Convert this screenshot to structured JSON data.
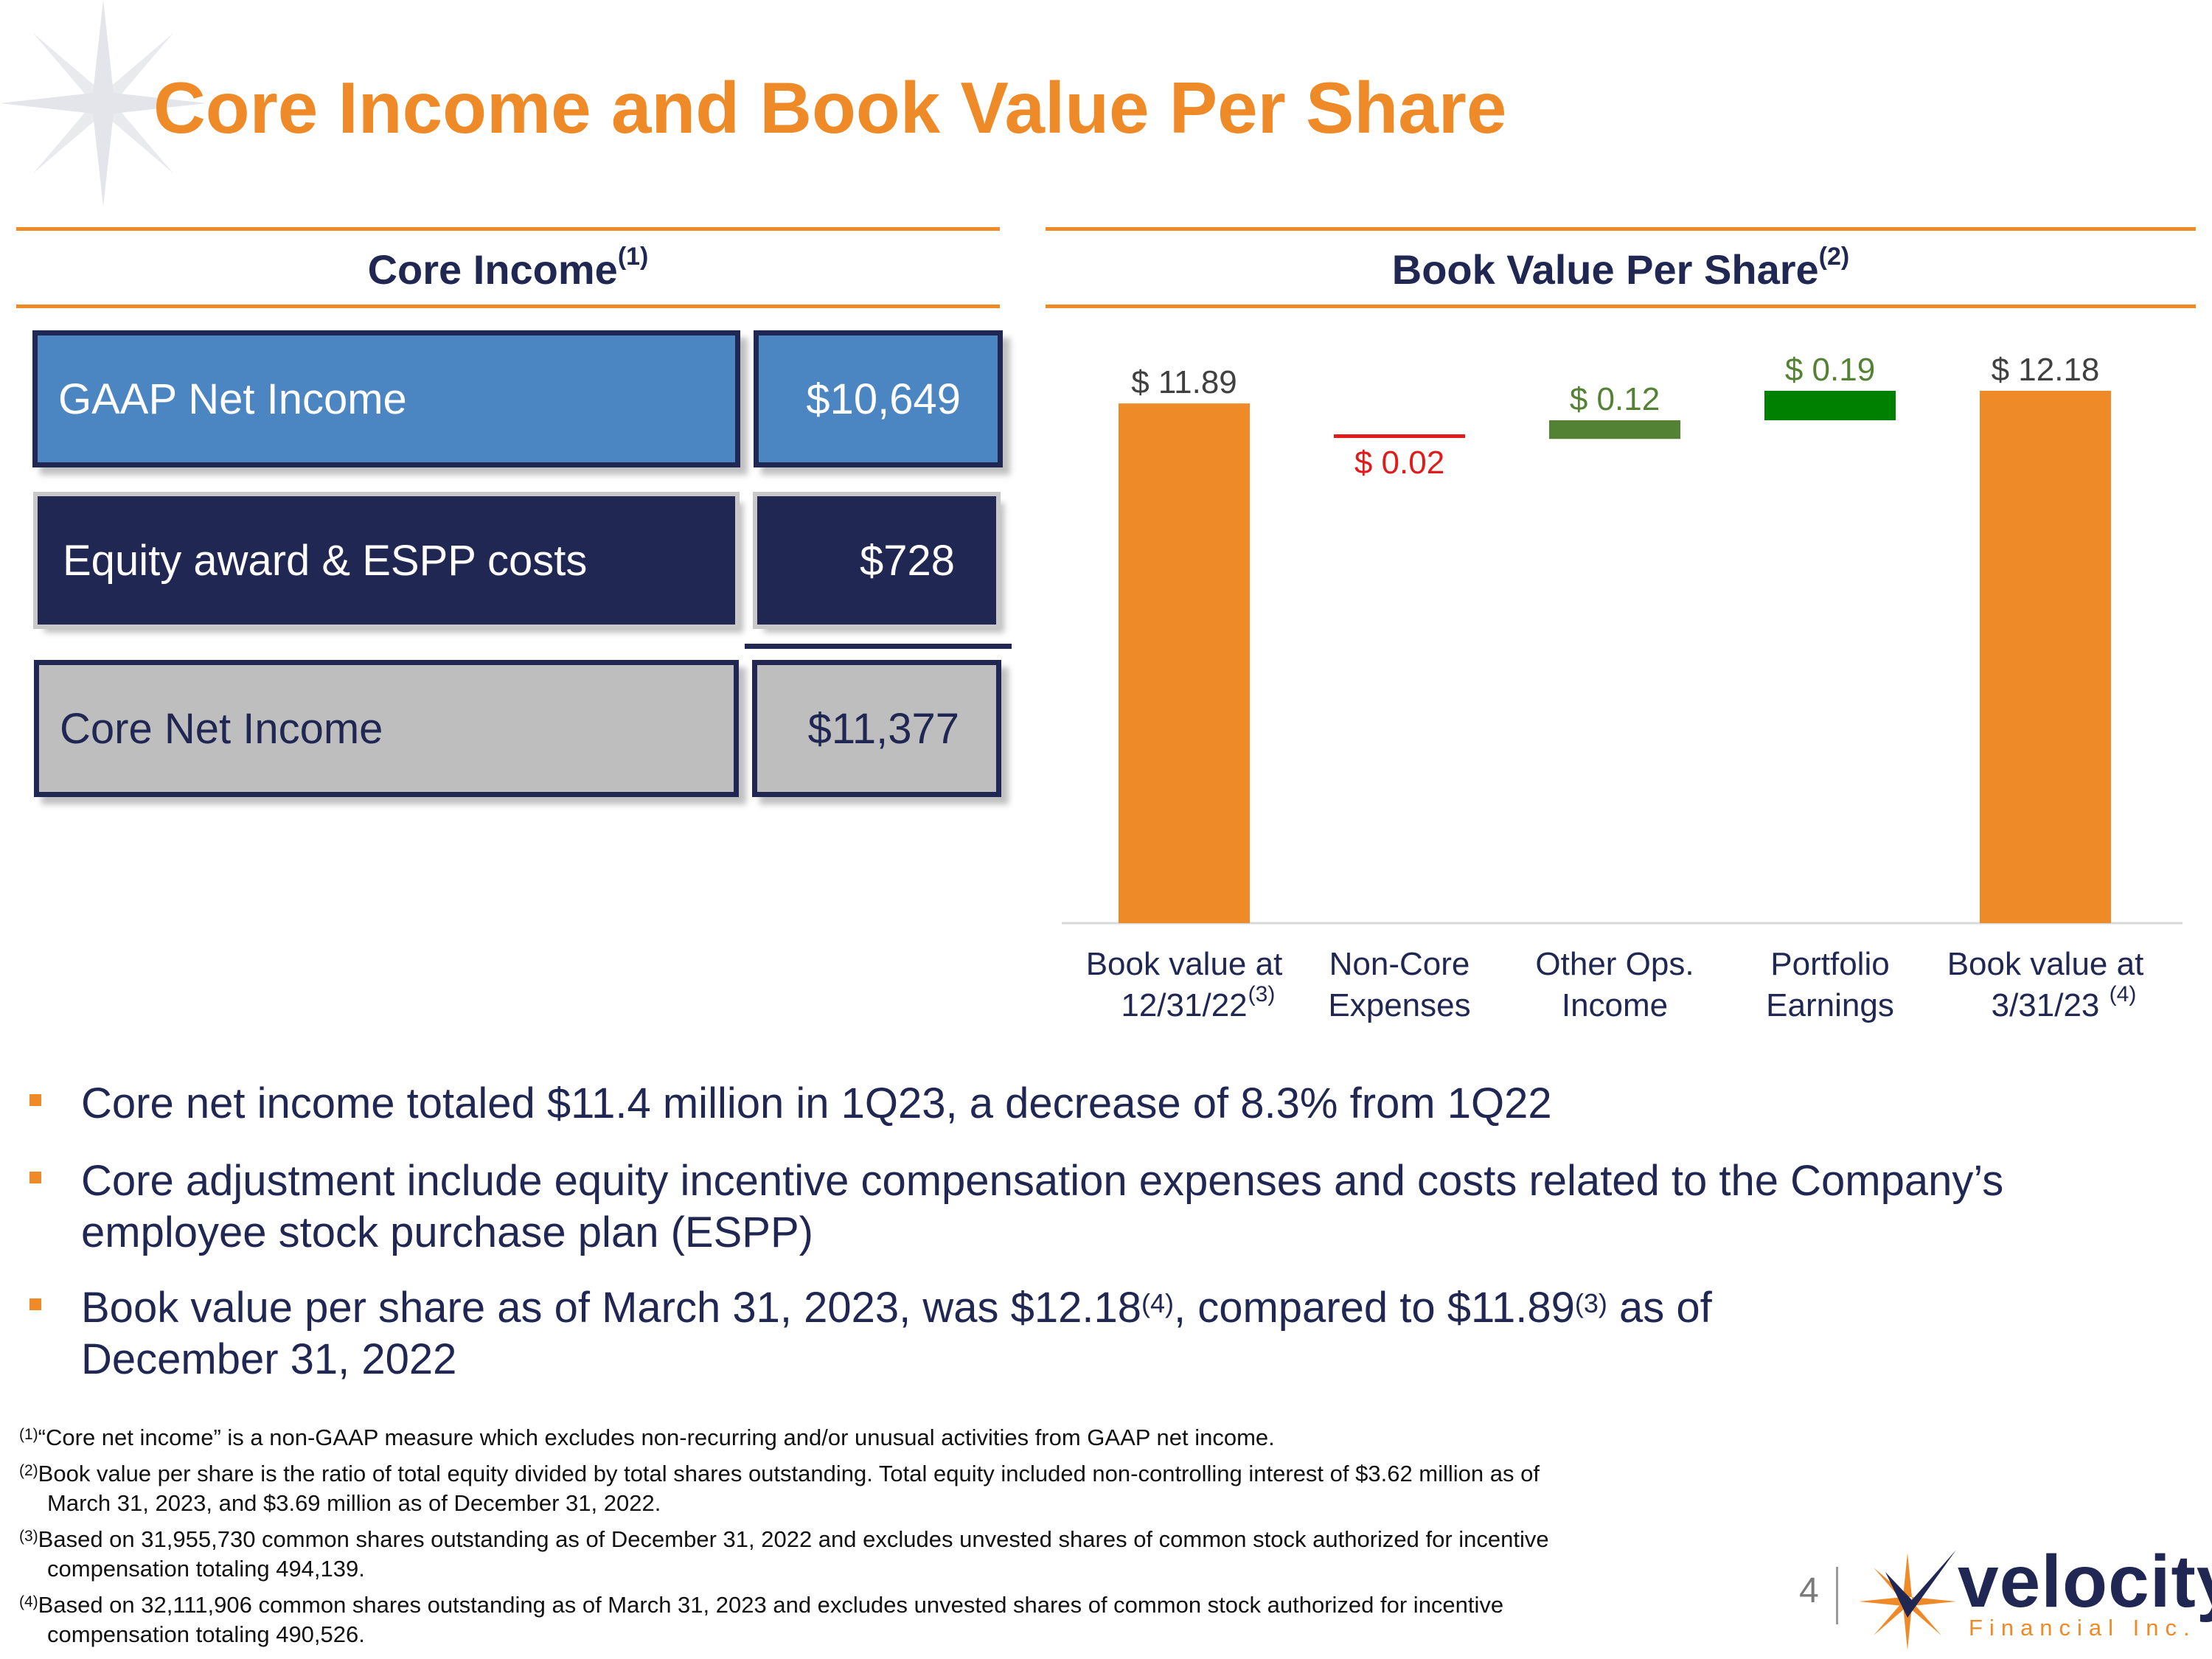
{
  "title": "Core Income and Book Value Per Share",
  "core_income": {
    "heading": "Core Income",
    "heading_note": "(1)",
    "rows": [
      {
        "label": "GAAP Net Income",
        "value": "$10,649"
      },
      {
        "label": "Equity award & ESPP costs",
        "value": "$728"
      },
      {
        "label": "Core Net Income",
        "value": "$11,377"
      }
    ]
  },
  "book_value": {
    "heading": "Book Value Per Share",
    "heading_note": "(2)"
  },
  "chart_data": {
    "type": "bar",
    "subtype": "waterfall",
    "categories": [
      {
        "line1": "Book value at",
        "line2": "12/31/22",
        "note": "(3)"
      },
      {
        "line1": "Non-Core",
        "line2": "Expenses",
        "note": ""
      },
      {
        "line1": "Other Ops.",
        "line2": "Income",
        "note": ""
      },
      {
        "line1": "Portfolio",
        "line2": "Earnings",
        "note": ""
      },
      {
        "line1": "Book value at",
        "line2": "3/31/23",
        "note": "(4)"
      }
    ],
    "bars": [
      {
        "kind": "total",
        "start": 0,
        "end": 11.89,
        "label": "$ 11.89",
        "color": "#ee8a27",
        "label_color": "#404040"
      },
      {
        "kind": "decrease",
        "start": 11.89,
        "end": 11.87,
        "label": "$ 0.02",
        "color": "#e01b1b",
        "label_color": "#e01b1b"
      },
      {
        "kind": "increase",
        "start": 11.87,
        "end": 11.99,
        "label": "$ 0.12",
        "color": "#548235",
        "label_color": "#548235"
      },
      {
        "kind": "increase",
        "start": 11.99,
        "end": 12.18,
        "label": "$ 0.19",
        "color": "#008000",
        "label_color": "#548235"
      },
      {
        "kind": "total",
        "start": 0,
        "end": 12.18,
        "label": "$ 12.18",
        "color": "#ee8a27",
        "label_color": "#404040"
      }
    ],
    "colors": {
      "axis": "#d9d9d9",
      "category_text": "#202752"
    }
  },
  "bullets": [
    {
      "lines": [
        {
          "text": "Core net income totaled $11.4 million in 1Q23, a decrease of 8.3% from 1Q22"
        }
      ]
    },
    {
      "lines": [
        {
          "text": "Core adjustment include equity incentive compensation expenses and costs related to the Company’s"
        },
        {
          "text": "employee stock purchase plan (ESPP)"
        }
      ]
    },
    {
      "lines": [
        {
          "a": "Book value per share as of March 31, 2023, was $12.18",
          "sa": "(4)",
          "b": ", compared to $11.89",
          "sb": "(3)",
          "c": " as of"
        },
        {
          "text": "December 31, 2022"
        }
      ]
    }
  ],
  "footnotes": [
    {
      "mark": "(1)",
      "lines": [
        "“Core net income” is a non-GAAP measure which excludes non-recurring and/or unusual activities from GAAP net income."
      ]
    },
    {
      "mark": "(2)",
      "lines": [
        "Book value per share is the ratio of total equity divided by total shares outstanding. Total equity included non-controlling interest of $3.62 million as of",
        "March 31, 2023, and $3.69 million as of December 31, 2022."
      ]
    },
    {
      "mark": "(3)",
      "lines": [
        "Based on 31,955,730 common shares outstanding as of December 31, 2022 and excludes unvested shares of common stock authorized for incentive",
        "compensation totaling 494,139."
      ]
    },
    {
      "mark": "(4)",
      "lines": [
        "Based on 32,111,906 common shares outstanding as of March 31, 2023 and excludes unvested shares of common stock authorized for incentive",
        "compensation totaling 490,526."
      ]
    }
  ],
  "page_number": "4",
  "logo": {
    "word": "velocity",
    "sub": "Financial Inc."
  }
}
